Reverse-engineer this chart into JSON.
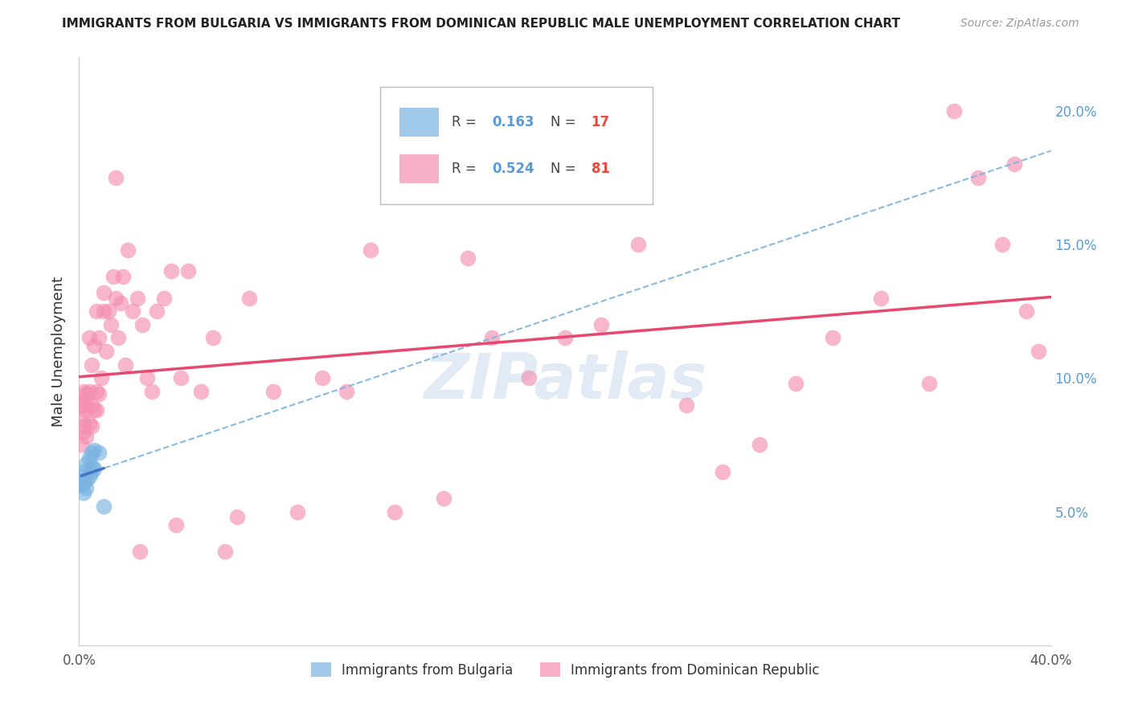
{
  "title": "IMMIGRANTS FROM BULGARIA VS IMMIGRANTS FROM DOMINICAN REPUBLIC MALE UNEMPLOYMENT CORRELATION CHART",
  "source": "Source: ZipAtlas.com",
  "xlabel": "",
  "ylabel": "Male Unemployment",
  "xlim": [
    0.0,
    0.4
  ],
  "ylim": [
    0.0,
    0.22
  ],
  "xticks": [
    0.0,
    0.05,
    0.1,
    0.15,
    0.2,
    0.25,
    0.3,
    0.35,
    0.4
  ],
  "xticklabels": [
    "0.0%",
    "",
    "",
    "",
    "",
    "",
    "",
    "",
    "40.0%"
  ],
  "yticks_right": [
    0.05,
    0.1,
    0.15,
    0.2
  ],
  "ytick_right_labels": [
    "5.0%",
    "10.0%",
    "15.0%",
    "20.0%"
  ],
  "bg_color": "#ffffff",
  "grid_color": "#cccccc",
  "watermark": "ZIPatlas",
  "bulgaria_color": "#7ab3e0",
  "dr_color": "#f48fb1",
  "bulgaria_R": 0.163,
  "bulgaria_N": 17,
  "dr_R": 0.524,
  "dr_N": 81,
  "legend_R_color": "#5b9bd5",
  "legend_N_color": "#e8483d",
  "bulgaria_line_color": "#4472c4",
  "dr_line_color": "#e8486e",
  "dashed_line_color": "#7ab3e0",
  "bulgaria_x": [
    0.001,
    0.001,
    0.002,
    0.002,
    0.002,
    0.003,
    0.003,
    0.003,
    0.004,
    0.004,
    0.005,
    0.005,
    0.005,
    0.006,
    0.006,
    0.008,
    0.01
  ],
  "bulgaria_y": [
    0.06,
    0.063,
    0.057,
    0.061,
    0.065,
    0.059,
    0.062,
    0.068,
    0.063,
    0.07,
    0.065,
    0.067,
    0.072,
    0.066,
    0.073,
    0.072,
    0.052
  ],
  "dr_x": [
    0.001,
    0.001,
    0.001,
    0.002,
    0.002,
    0.002,
    0.002,
    0.003,
    0.003,
    0.003,
    0.003,
    0.004,
    0.004,
    0.004,
    0.005,
    0.005,
    0.005,
    0.006,
    0.006,
    0.007,
    0.007,
    0.007,
    0.008,
    0.008,
    0.009,
    0.01,
    0.01,
    0.011,
    0.012,
    0.013,
    0.014,
    0.015,
    0.016,
    0.017,
    0.018,
    0.019,
    0.02,
    0.022,
    0.024,
    0.026,
    0.028,
    0.03,
    0.032,
    0.035,
    0.038,
    0.042,
    0.045,
    0.05,
    0.055,
    0.06,
    0.065,
    0.07,
    0.08,
    0.09,
    0.1,
    0.11,
    0.12,
    0.13,
    0.15,
    0.16,
    0.17,
    0.185,
    0.2,
    0.215,
    0.23,
    0.25,
    0.265,
    0.28,
    0.295,
    0.31,
    0.33,
    0.35,
    0.36,
    0.37,
    0.38,
    0.385,
    0.39,
    0.395,
    0.04,
    0.025,
    0.015
  ],
  "dr_y": [
    0.09,
    0.085,
    0.075,
    0.08,
    0.09,
    0.082,
    0.095,
    0.088,
    0.078,
    0.094,
    0.092,
    0.095,
    0.115,
    0.083,
    0.082,
    0.09,
    0.105,
    0.088,
    0.112,
    0.095,
    0.125,
    0.088,
    0.094,
    0.115,
    0.1,
    0.125,
    0.132,
    0.11,
    0.125,
    0.12,
    0.138,
    0.13,
    0.115,
    0.128,
    0.138,
    0.105,
    0.148,
    0.125,
    0.13,
    0.12,
    0.1,
    0.095,
    0.125,
    0.13,
    0.14,
    0.1,
    0.14,
    0.095,
    0.115,
    0.035,
    0.048,
    0.13,
    0.095,
    0.05,
    0.1,
    0.095,
    0.148,
    0.05,
    0.055,
    0.145,
    0.115,
    0.1,
    0.115,
    0.12,
    0.15,
    0.09,
    0.065,
    0.075,
    0.098,
    0.115,
    0.13,
    0.098,
    0.2,
    0.175,
    0.15,
    0.18,
    0.125,
    0.11,
    0.045,
    0.035,
    0.175
  ]
}
